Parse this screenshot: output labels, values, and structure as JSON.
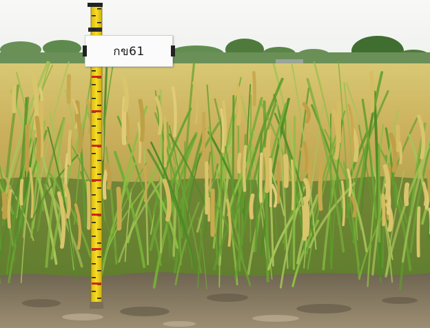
{
  "photo": {
    "subject": "rice-field-with-survey-staff",
    "sign_label": "กข61"
  },
  "colors": {
    "sky": "#f4f6f4",
    "tree": "#4f7a3c",
    "grain": "#cdb35c",
    "leaf": "#5f9a2e",
    "soil": "#8a7c62",
    "staff": "#f2d21a"
  }
}
